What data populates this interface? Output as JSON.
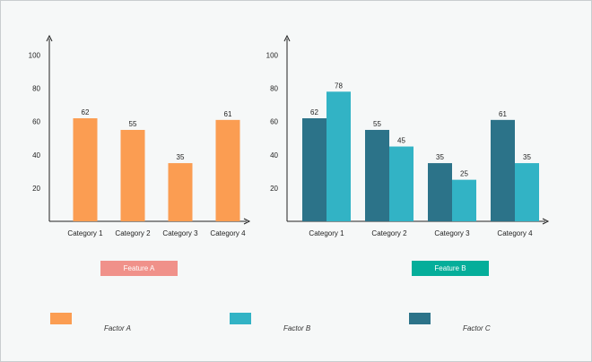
{
  "chart_data": [
    {
      "type": "bar",
      "categories": [
        "Category 1",
        "Category 2",
        "Category 3",
        "Category 4"
      ],
      "series": [
        {
          "values": [
            62,
            55,
            35,
            61
          ],
          "color": "#fb9d52"
        }
      ],
      "ylim": [
        0,
        110
      ],
      "yticks": [
        20,
        40,
        60,
        80,
        100
      ],
      "grid": false
    },
    {
      "type": "bar",
      "categories": [
        "Category 1",
        "Category 2",
        "Category 3",
        "Category 4"
      ],
      "series": [
        {
          "values": [
            62,
            55,
            35,
            61
          ],
          "color": "#2c7389"
        },
        {
          "values": [
            78,
            45,
            25,
            35
          ],
          "color": "#32b3c5"
        }
      ],
      "ylim": [
        0,
        110
      ],
      "yticks": [
        20,
        40,
        60,
        80,
        100
      ],
      "grid": false
    }
  ],
  "features": [
    {
      "label": "Feature A",
      "color": "#f0918a"
    },
    {
      "label": "Feature B",
      "color": "#05ae9a"
    }
  ],
  "legend": [
    {
      "label": "Factor A",
      "color": "#fb9d52"
    },
    {
      "label": "Factor B",
      "color": "#32b3c5"
    },
    {
      "label": "Factor C",
      "color": "#2c7389"
    }
  ]
}
